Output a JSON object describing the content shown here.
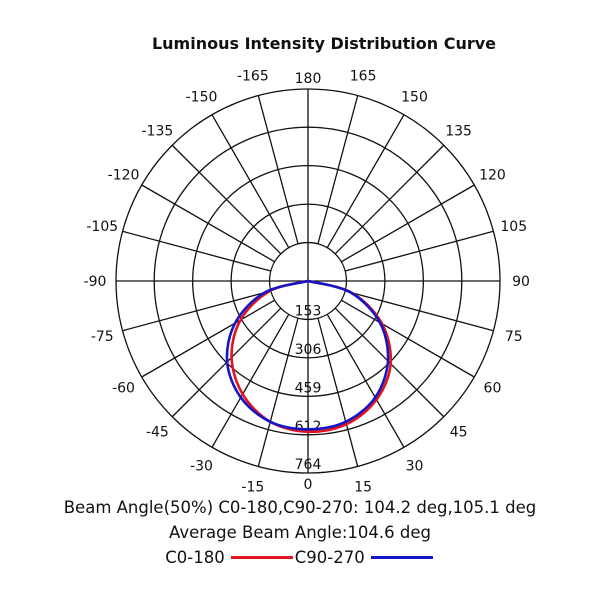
{
  "chart_data": {
    "type": "polar",
    "title": "Luminous Intensity Distribution Curve",
    "angle_ticks": [
      0,
      15,
      30,
      45,
      60,
      75,
      90,
      105,
      120,
      135,
      150,
      165,
      180,
      -165,
      -150,
      -135,
      -120,
      -105,
      -90,
      -75,
      -60,
      -45,
      -30,
      -15
    ],
    "radial_ticks": [
      153,
      306,
      459,
      612,
      764
    ],
    "rlim": [
      0,
      764
    ],
    "grid": true,
    "angles": [
      -90,
      -75,
      -60,
      -45,
      -30,
      -15,
      0,
      15,
      30,
      45,
      60,
      75,
      90
    ],
    "series": [
      {
        "name": "C0-180",
        "color": "#e0141e",
        "values": [
          0,
          160,
          310,
          430,
          520,
          580,
          600,
          590,
          545,
          465,
          340,
          180,
          0
        ]
      },
      {
        "name": "C90-270",
        "color": "#1414c8",
        "values": [
          0,
          180,
          335,
          455,
          535,
          580,
          590,
          580,
          535,
          450,
          330,
          175,
          0
        ]
      }
    ],
    "annotations": {
      "beam_angle": "Beam Angle(50%) C0-180,C90-270: 104.2 deg,105.1 deg",
      "average": "Average Beam Angle:104.6 deg"
    },
    "legend": "bottom"
  }
}
